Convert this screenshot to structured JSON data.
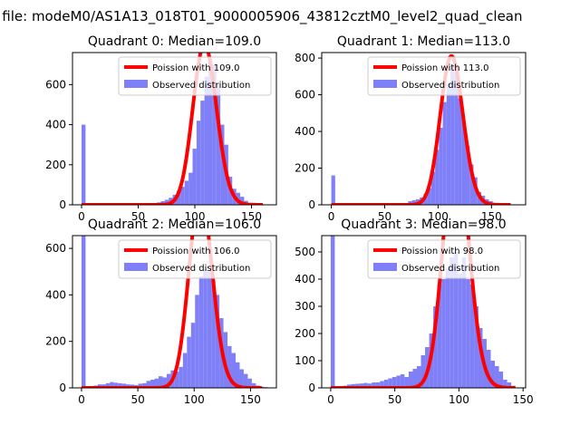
{
  "figure": {
    "suptitle": "n file: modeM0/AS1A13_018T01_9000005906_43812cztM0_level2_quad_clean"
  },
  "colors": {
    "hist": "#7f7ff7",
    "poisson": "#ff0000",
    "axis": "#000000",
    "legend_border": "#cccccc"
  },
  "chart_data": [
    {
      "type": "histogram",
      "title": "Quadrant 0: Median=109.0",
      "xlim": [
        -8,
        172
      ],
      "ylim": [
        0,
        760
      ],
      "xticks": [
        0,
        50,
        100,
        150
      ],
      "yticks": [
        0,
        200,
        400,
        600
      ],
      "bin_width": 3.5,
      "series": [
        {
          "name": "Observed distribution",
          "kind": "bars",
          "x": [
            0,
            3.5,
            7,
            10.5,
            14,
            17.5,
            21,
            24.5,
            28,
            31.5,
            35,
            38.5,
            42,
            45.5,
            49,
            52.5,
            56,
            59.5,
            63,
            66.5,
            70,
            73.5,
            77,
            80.5,
            84,
            87.5,
            91,
            94.5,
            98,
            101.5,
            105,
            108.5,
            112,
            115.5,
            119,
            122.5,
            126,
            129.5,
            133,
            136.5,
            140,
            143.5,
            147,
            150.5,
            154,
            157.5
          ],
          "values": [
            400,
            0,
            0,
            0,
            3,
            4,
            3,
            4,
            3,
            4,
            4,
            3,
            4,
            5,
            4,
            4,
            5,
            6,
            8,
            12,
            18,
            25,
            35,
            50,
            70,
            90,
            120,
            160,
            280,
            420,
            520,
            640,
            720,
            700,
            600,
            400,
            300,
            140,
            80,
            60,
            40,
            20,
            10,
            10,
            5,
            3
          ]
        },
        {
          "name": "Poission with 109.0",
          "kind": "line",
          "mu": 109.0,
          "x_range": [
            0,
            160
          ],
          "line_width": 4
        }
      ]
    },
    {
      "type": "histogram",
      "title": "Quadrant 1: Median=113.0",
      "xlim": [
        -9,
        182
      ],
      "ylim": [
        0,
        830
      ],
      "xticks": [
        0,
        50,
        100,
        150
      ],
      "yticks": [
        0,
        200,
        400,
        600,
        800
      ],
      "bin_width": 3.6,
      "series": [
        {
          "name": "Observed distribution",
          "kind": "bars",
          "x": [
            0,
            3.6,
            7.2,
            10.8,
            14.4,
            18,
            21.6,
            25.2,
            28.8,
            32.4,
            36,
            39.6,
            43.2,
            46.8,
            50.4,
            54,
            57.6,
            61.2,
            64.8,
            68.4,
            72,
            75.6,
            79.2,
            82.8,
            86.4,
            90,
            93.6,
            97.2,
            100.8,
            104.4,
            108,
            111.6,
            115.2,
            118.8,
            122.4,
            126,
            129.6,
            133.2,
            136.8,
            140.4,
            144,
            147.6,
            151.2,
            154.8,
            158.4,
            162
          ],
          "values": [
            160,
            0,
            0,
            0,
            0,
            2,
            2,
            3,
            2,
            3,
            3,
            3,
            4,
            4,
            5,
            5,
            6,
            6,
            8,
            10,
            20,
            25,
            30,
            40,
            60,
            90,
            180,
            300,
            420,
            560,
            660,
            760,
            720,
            580,
            450,
            320,
            220,
            150,
            70,
            50,
            30,
            20,
            10,
            8,
            5,
            3
          ]
        },
        {
          "name": "Poission with 113.0",
          "kind": "line",
          "mu": 113.0,
          "x_range": [
            0,
            168
          ],
          "line_width": 4
        }
      ]
    },
    {
      "type": "histogram",
      "title": "Quadrant 2: Median=106.0",
      "xlim": [
        -8,
        173
      ],
      "ylim": [
        0,
        655
      ],
      "xticks": [
        0,
        50,
        100,
        150
      ],
      "yticks": [
        0,
        200,
        400,
        600
      ],
      "bin_width": 3.6,
      "series": [
        {
          "name": "Observed distribution",
          "kind": "bars",
          "x": [
            0,
            3.6,
            7.2,
            10.8,
            14.4,
            18,
            21.6,
            25.2,
            28.8,
            32.4,
            36,
            39.6,
            43.2,
            46.8,
            50.4,
            54,
            57.6,
            61.2,
            64.8,
            68.4,
            72,
            75.6,
            79.2,
            82.8,
            86.4,
            90,
            93.6,
            97.2,
            100.8,
            104.4,
            108,
            111.6,
            115.2,
            118.8,
            122.4,
            126,
            129.6,
            133.2,
            136.8,
            140.4,
            144,
            147.6,
            151.2,
            154.8,
            158.4,
            162
          ],
          "values": [
            655,
            0,
            5,
            10,
            15,
            15,
            20,
            25,
            22,
            20,
            18,
            15,
            14,
            12,
            18,
            20,
            30,
            35,
            40,
            50,
            45,
            60,
            75,
            70,
            90,
            150,
            220,
            280,
            400,
            480,
            510,
            500,
            460,
            400,
            300,
            240,
            180,
            150,
            110,
            80,
            60,
            40,
            20,
            10,
            5,
            3
          ]
        },
        {
          "name": "Poission with 106.0",
          "kind": "line",
          "mu": 106.0,
          "x_range": [
            0,
            160
          ],
          "line_width": 4
        }
      ]
    },
    {
      "type": "histogram",
      "title": "Quadrant 3: Median=98.0",
      "xlim": [
        -7,
        152
      ],
      "ylim": [
        0,
        560
      ],
      "xticks": [
        0,
        50,
        100,
        150
      ],
      "yticks": [
        0,
        100,
        200,
        300,
        400,
        500
      ],
      "bin_width": 3.2,
      "series": [
        {
          "name": "Observed distribution",
          "kind": "bars",
          "x": [
            0,
            3.2,
            6.4,
            9.6,
            12.8,
            16,
            19.2,
            22.4,
            25.6,
            28.8,
            32,
            35.2,
            38.4,
            41.6,
            44.8,
            48,
            51.2,
            54.4,
            57.6,
            60.8,
            64,
            67.2,
            70.4,
            73.6,
            76.8,
            80,
            83.2,
            86.4,
            89.6,
            92.8,
            96,
            99.2,
            102.4,
            105.6,
            108.8,
            112,
            115.2,
            118.4,
            121.6,
            124.8,
            128,
            131.2,
            134.4,
            137.6,
            140.8
          ],
          "values": [
            560,
            0,
            5,
            8,
            12,
            14,
            15,
            16,
            18,
            16,
            20,
            20,
            25,
            30,
            35,
            40,
            45,
            50,
            40,
            60,
            70,
            80,
            120,
            150,
            200,
            300,
            380,
            400,
            440,
            480,
            500,
            420,
            480,
            400,
            380,
            300,
            220,
            180,
            140,
            100,
            80,
            60,
            30,
            20,
            8
          ]
        },
        {
          "name": "Poission with 98.0",
          "kind": "line",
          "mu": 98.0,
          "x_range": [
            0,
            144
          ],
          "line_width": 4
        }
      ]
    }
  ]
}
